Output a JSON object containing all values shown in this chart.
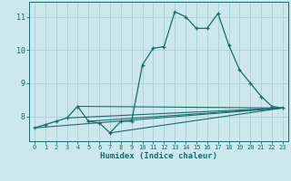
{
  "xlabel": "Humidex (Indice chaleur)",
  "bg_color": "#cde8ec",
  "grid_color": "#aacfd4",
  "line_color": "#1a6b6b",
  "x_data": [
    0,
    1,
    2,
    3,
    4,
    5,
    6,
    7,
    8,
    9,
    10,
    11,
    12,
    13,
    14,
    15,
    16,
    17,
    18,
    19,
    20,
    21,
    22,
    23
  ],
  "y_main": [
    7.65,
    7.75,
    7.85,
    7.95,
    8.3,
    7.85,
    7.8,
    7.5,
    7.85,
    7.85,
    9.55,
    10.05,
    10.1,
    11.15,
    11.0,
    10.65,
    10.65,
    11.1,
    10.15,
    9.4,
    9.0,
    8.6,
    8.3,
    8.25
  ],
  "trend_lines": [
    [
      0,
      7.65,
      23,
      8.25
    ],
    [
      3,
      7.95,
      23,
      8.25
    ],
    [
      4,
      8.3,
      23,
      8.25
    ],
    [
      5,
      7.85,
      23,
      8.25
    ],
    [
      7,
      7.5,
      23,
      8.25
    ]
  ],
  "xlim": [
    -0.5,
    23.5
  ],
  "ylim": [
    7.25,
    11.45
  ],
  "yticks": [
    8,
    9,
    10,
    11
  ],
  "xticks": [
    0,
    1,
    2,
    3,
    4,
    5,
    6,
    7,
    8,
    9,
    10,
    11,
    12,
    13,
    14,
    15,
    16,
    17,
    18,
    19,
    20,
    21,
    22,
    23
  ]
}
